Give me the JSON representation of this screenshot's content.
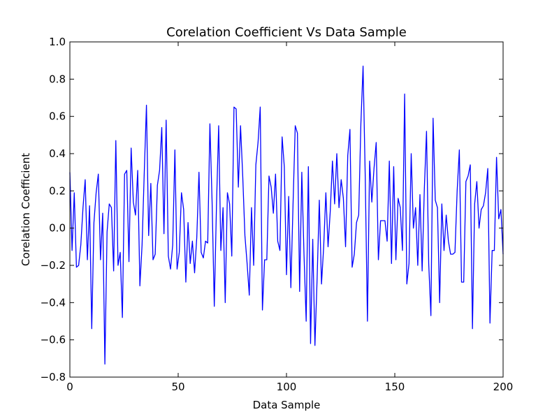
{
  "chart_data": {
    "type": "line",
    "title": "Corelation Coefficient Vs Data Sample",
    "xlabel": "Data Sample",
    "ylabel": "Corelation Coefficient",
    "xlim": [
      0,
      200
    ],
    "ylim": [
      -0.8,
      1.0
    ],
    "xticks": [
      0,
      50,
      100,
      150,
      200
    ],
    "yticks": [
      -0.8,
      -0.6,
      -0.4,
      -0.2,
      0.0,
      0.2,
      0.4,
      0.6,
      0.8,
      1.0
    ],
    "xtick_labels": [
      "0",
      "50",
      "100",
      "150",
      "200"
    ],
    "ytick_labels": [
      "−0.8",
      "−0.6",
      "−0.4",
      "−0.2",
      "0.0",
      "0.2",
      "0.4",
      "0.6",
      "0.8",
      "1.0"
    ],
    "grid": false,
    "line_color": "#0000ff",
    "series": [
      {
        "values": [
          0.3,
          -0.12,
          0.19,
          -0.21,
          -0.2,
          -0.09,
          0.11,
          0.26,
          -0.17,
          0.12,
          -0.54,
          0.03,
          0.19,
          0.29,
          -0.17,
          0.08,
          -0.73,
          -0.02,
          0.13,
          0.11,
          -0.23,
          0.47,
          -0.2,
          -0.13,
          -0.48,
          0.29,
          0.31,
          -0.18,
          0.43,
          0.14,
          0.07,
          0.31,
          -0.31,
          -0.09,
          0.3,
          0.66,
          -0.04,
          0.24,
          -0.17,
          -0.14,
          0.23,
          0.31,
          0.54,
          -0.03,
          0.58,
          -0.15,
          -0.22,
          -0.09,
          0.42,
          -0.22,
          -0.13,
          0.19,
          0.1,
          -0.29,
          0.03,
          -0.19,
          -0.07,
          -0.24,
          -0.05,
          0.3,
          -0.13,
          -0.16,
          -0.07,
          -0.08,
          0.56,
          0.14,
          -0.42,
          0.12,
          0.55,
          -0.12,
          0.11,
          -0.4,
          0.19,
          0.13,
          -0.15,
          0.65,
          0.64,
          0.22,
          0.55,
          0.28,
          -0.04,
          -0.19,
          -0.36,
          0.11,
          -0.2,
          0.34,
          0.46,
          0.65,
          -0.44,
          -0.17,
          -0.17,
          0.28,
          0.22,
          0.08,
          0.29,
          -0.07,
          -0.12,
          0.49,
          0.33,
          -0.25,
          0.17,
          -0.32,
          0.13,
          0.55,
          0.51,
          -0.34,
          0.3,
          -0.14,
          -0.5,
          0.33,
          -0.62,
          -0.06,
          -0.63,
          -0.27,
          0.15,
          -0.3,
          -0.1,
          0.19,
          -0.1,
          0.09,
          0.36,
          0.13,
          0.4,
          0.11,
          0.26,
          0.16,
          -0.1,
          0.39,
          0.53,
          -0.21,
          -0.14,
          0.03,
          0.07,
          0.56,
          0.87,
          0.27,
          -0.5,
          0.36,
          0.14,
          0.32,
          0.46,
          -0.17,
          0.04,
          0.04,
          0.04,
          -0.07,
          0.36,
          -0.19,
          0.33,
          -0.17,
          0.16,
          0.11,
          -0.12,
          0.72,
          -0.3,
          -0.19,
          0.4,
          0.0,
          0.11,
          -0.2,
          0.18,
          -0.23,
          0.21,
          0.52,
          -0.19,
          -0.47,
          0.59,
          0.15,
          0.11,
          -0.4,
          0.13,
          -0.12,
          0.07,
          -0.07,
          -0.14,
          -0.14,
          -0.13,
          0.2,
          0.42,
          -0.29,
          -0.29,
          0.25,
          0.28,
          0.34,
          -0.54,
          0.13,
          0.25,
          0.0,
          0.1,
          0.12,
          0.19,
          0.32,
          -0.51,
          -0.12,
          -0.12,
          0.38,
          0.05,
          0.1,
          -0.14
        ]
      }
    ]
  }
}
